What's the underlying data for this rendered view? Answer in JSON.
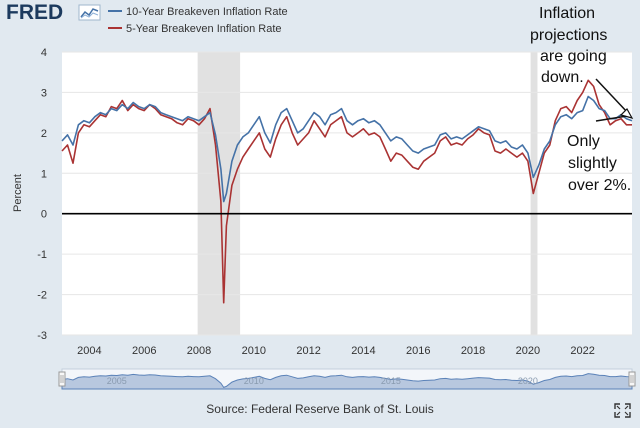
{
  "brand": {
    "logo_text": "FRED"
  },
  "source_text": "Source: Federal Reserve Bank of St. Louis",
  "fullscreen_icon": "expand-icon",
  "annotations": {
    "top_lines": [
      "Inflation",
      "projections",
      "are going",
      "down."
    ],
    "bottom_lines": [
      "Only",
      "slightly",
      "over 2%."
    ]
  },
  "navigator_labels": [
    "2005",
    "2010",
    "2015",
    "2020"
  ],
  "colors": {
    "series_10yr": "#4572a7",
    "series_5yr": "#aa3333",
    "recession": "#e1e1e1",
    "navigator_fill": "#b8c8df",
    "navigator_line": "#5b82b8"
  },
  "chart_data": {
    "type": "line",
    "title": "",
    "xlabel": "",
    "ylabel": "Percent",
    "xlim": [
      2003.0,
      2023.8
    ],
    "ylim": [
      -3,
      4
    ],
    "y_ticks": [
      -3,
      -2,
      -1,
      0,
      1,
      2,
      3,
      4
    ],
    "y_tick_labels": [
      "-3",
      "-2",
      "-1",
      "0",
      "1",
      "2",
      "3",
      "4"
    ],
    "x_ticks": [
      2004,
      2006,
      2008,
      2010,
      2012,
      2014,
      2016,
      2018,
      2020,
      2022
    ],
    "x_tick_labels": [
      "2004",
      "2006",
      "2008",
      "2010",
      "2012",
      "2014",
      "2016",
      "2018",
      "2020",
      "2022"
    ],
    "grid": "horizontal",
    "zero_line": true,
    "recessions": [
      [
        2007.95,
        2009.5
      ],
      [
        2020.1,
        2020.35
      ]
    ],
    "series": [
      {
        "name": "10-Year Breakeven Inflation Rate",
        "x": [
          2003.0,
          2003.2,
          2003.4,
          2003.6,
          2003.8,
          2004.0,
          2004.2,
          2004.4,
          2004.6,
          2004.8,
          2005.0,
          2005.2,
          2005.4,
          2005.6,
          2005.8,
          2006.0,
          2006.2,
          2006.4,
          2006.6,
          2006.8,
          2007.0,
          2007.2,
          2007.4,
          2007.6,
          2007.8,
          2008.0,
          2008.2,
          2008.4,
          2008.6,
          2008.8,
          2008.9,
          2009.0,
          2009.2,
          2009.4,
          2009.6,
          2009.8,
          2010.0,
          2010.2,
          2010.4,
          2010.6,
          2010.8,
          2011.0,
          2011.2,
          2011.4,
          2011.6,
          2011.8,
          2012.0,
          2012.2,
          2012.4,
          2012.6,
          2012.8,
          2013.0,
          2013.2,
          2013.4,
          2013.6,
          2013.8,
          2014.0,
          2014.2,
          2014.4,
          2014.6,
          2014.8,
          2015.0,
          2015.2,
          2015.4,
          2015.6,
          2015.8,
          2016.0,
          2016.2,
          2016.4,
          2016.6,
          2016.8,
          2017.0,
          2017.2,
          2017.4,
          2017.6,
          2017.8,
          2018.0,
          2018.2,
          2018.4,
          2018.6,
          2018.8,
          2019.0,
          2019.2,
          2019.4,
          2019.6,
          2019.8,
          2020.0,
          2020.2,
          2020.4,
          2020.6,
          2020.8,
          2021.0,
          2021.2,
          2021.4,
          2021.6,
          2021.8,
          2022.0,
          2022.2,
          2022.4,
          2022.6,
          2022.8,
          2023.0,
          2023.2,
          2023.4,
          2023.6,
          2023.8
        ],
        "values": [
          1.8,
          1.95,
          1.7,
          2.2,
          2.3,
          2.25,
          2.4,
          2.5,
          2.45,
          2.6,
          2.55,
          2.7,
          2.6,
          2.75,
          2.65,
          2.6,
          2.7,
          2.65,
          2.5,
          2.45,
          2.4,
          2.35,
          2.3,
          2.4,
          2.35,
          2.3,
          2.4,
          2.5,
          1.95,
          1.1,
          0.3,
          0.5,
          1.3,
          1.7,
          1.9,
          2.0,
          2.2,
          2.4,
          2.0,
          1.75,
          2.2,
          2.5,
          2.6,
          2.3,
          2.0,
          2.1,
          2.3,
          2.5,
          2.4,
          2.2,
          2.45,
          2.5,
          2.6,
          2.3,
          2.2,
          2.3,
          2.35,
          2.25,
          2.3,
          2.2,
          2.0,
          1.8,
          1.9,
          1.85,
          1.7,
          1.55,
          1.5,
          1.6,
          1.65,
          1.7,
          1.95,
          2.0,
          1.85,
          1.9,
          1.85,
          1.95,
          2.05,
          2.15,
          2.1,
          2.05,
          1.8,
          1.75,
          1.8,
          1.65,
          1.6,
          1.7,
          1.5,
          0.9,
          1.2,
          1.6,
          1.8,
          2.2,
          2.4,
          2.45,
          2.35,
          2.5,
          2.55,
          2.9,
          2.8,
          2.6,
          2.55,
          2.35,
          2.35,
          2.45,
          2.35,
          2.3
        ]
      },
      {
        "name": "5-Year Breakeven Inflation Rate",
        "x": [
          2003.0,
          2003.2,
          2003.4,
          2003.6,
          2003.8,
          2004.0,
          2004.2,
          2004.4,
          2004.6,
          2004.8,
          2005.0,
          2005.2,
          2005.4,
          2005.6,
          2005.8,
          2006.0,
          2006.2,
          2006.4,
          2006.6,
          2006.8,
          2007.0,
          2007.2,
          2007.4,
          2007.6,
          2007.8,
          2008.0,
          2008.2,
          2008.4,
          2008.6,
          2008.8,
          2008.9,
          2009.0,
          2009.2,
          2009.4,
          2009.6,
          2009.8,
          2010.0,
          2010.2,
          2010.4,
          2010.6,
          2010.8,
          2011.0,
          2011.2,
          2011.4,
          2011.6,
          2011.8,
          2012.0,
          2012.2,
          2012.4,
          2012.6,
          2012.8,
          2013.0,
          2013.2,
          2013.4,
          2013.6,
          2013.8,
          2014.0,
          2014.2,
          2014.4,
          2014.6,
          2014.8,
          2015.0,
          2015.2,
          2015.4,
          2015.6,
          2015.8,
          2016.0,
          2016.2,
          2016.4,
          2016.6,
          2016.8,
          2017.0,
          2017.2,
          2017.4,
          2017.6,
          2017.8,
          2018.0,
          2018.2,
          2018.4,
          2018.6,
          2018.8,
          2019.0,
          2019.2,
          2019.4,
          2019.6,
          2019.8,
          2020.0,
          2020.2,
          2020.4,
          2020.6,
          2020.8,
          2021.0,
          2021.2,
          2021.4,
          2021.6,
          2021.8,
          2022.0,
          2022.2,
          2022.4,
          2022.6,
          2022.8,
          2023.0,
          2023.2,
          2023.4,
          2023.6,
          2023.8
        ],
        "values": [
          1.55,
          1.7,
          1.25,
          2.0,
          2.2,
          2.15,
          2.3,
          2.45,
          2.4,
          2.65,
          2.6,
          2.8,
          2.55,
          2.7,
          2.6,
          2.55,
          2.7,
          2.6,
          2.45,
          2.4,
          2.35,
          2.25,
          2.2,
          2.35,
          2.3,
          2.2,
          2.35,
          2.6,
          1.7,
          0.3,
          -2.2,
          -0.3,
          0.7,
          1.1,
          1.4,
          1.6,
          1.8,
          2.0,
          1.6,
          1.4,
          1.85,
          2.2,
          2.4,
          2.0,
          1.7,
          1.85,
          2.0,
          2.3,
          2.1,
          1.9,
          2.2,
          2.3,
          2.4,
          2.0,
          1.9,
          2.0,
          2.1,
          1.95,
          2.0,
          1.9,
          1.6,
          1.3,
          1.5,
          1.45,
          1.3,
          1.15,
          1.1,
          1.3,
          1.4,
          1.5,
          1.8,
          1.9,
          1.7,
          1.75,
          1.7,
          1.85,
          1.95,
          2.1,
          2.0,
          1.95,
          1.55,
          1.5,
          1.6,
          1.5,
          1.4,
          1.5,
          1.3,
          0.5,
          1.0,
          1.5,
          1.7,
          2.3,
          2.6,
          2.65,
          2.5,
          2.8,
          3.0,
          3.3,
          3.15,
          2.7,
          2.5,
          2.2,
          2.3,
          2.35,
          2.2,
          2.2
        ]
      }
    ]
  }
}
